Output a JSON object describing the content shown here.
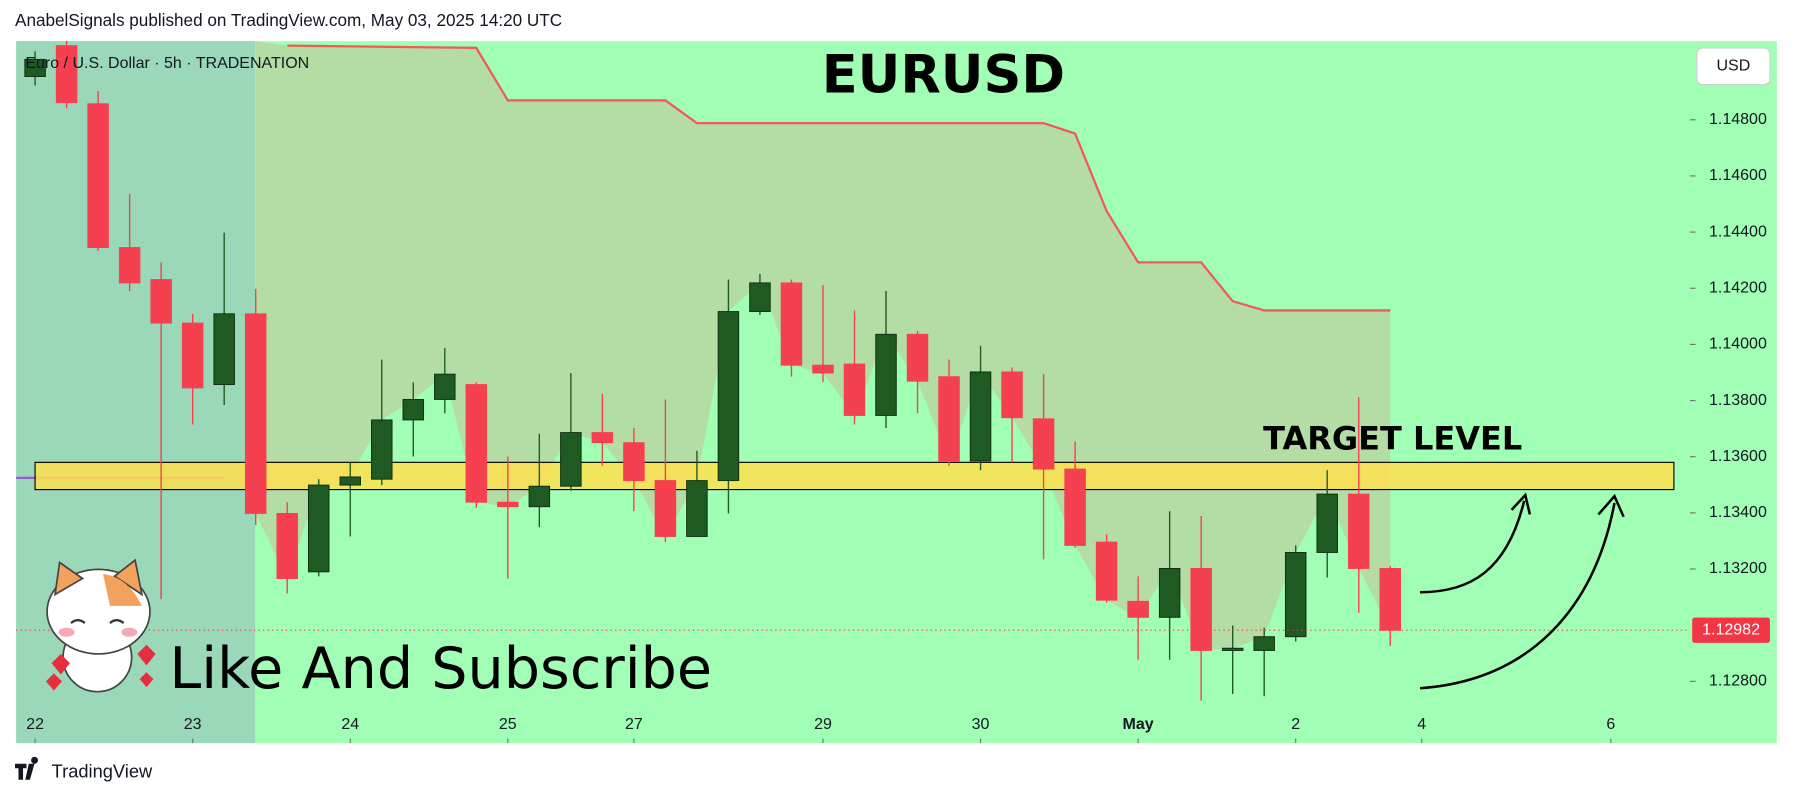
{
  "header": {
    "text": "AnabelSignals published on TradingView.com, May 03, 2025 14:20 UTC"
  },
  "footer": {
    "text": "TradingView"
  },
  "chart_data": {
    "type": "candlestick",
    "title": "EURUSD",
    "subtitle": "Euro / U.S. Dollar · 5h · TRADENATION",
    "currency": "USD",
    "up_color": "#1f5a22",
    "down_color": "#f5404f",
    "x": [
      0,
      1,
      2,
      3,
      4,
      5,
      6,
      7,
      8,
      9,
      10,
      11,
      12,
      13,
      14,
      15,
      16,
      17,
      18,
      19,
      20,
      21,
      22,
      23,
      24,
      25,
      26,
      27,
      28,
      29,
      30,
      31,
      32,
      33,
      34,
      35,
      36,
      37,
      38,
      39,
      40,
      41,
      42,
      43
    ],
    "open": [
      1.14954,
      1.15064,
      1.14857,
      1.14345,
      1.14231,
      1.14076,
      1.13857,
      1.14109,
      1.13398,
      1.1319,
      1.13499,
      1.1352,
      1.13731,
      1.13804,
      1.13857,
      1.13438,
      1.13422,
      1.13495,
      1.13686,
      1.1365,
      1.13515,
      1.13316,
      1.13515,
      1.14117,
      1.14219,
      1.13926,
      1.1393,
      1.13747,
      1.14036,
      1.13885,
      1.13585,
      1.13902,
      1.13735,
      1.13556,
      1.13296,
      1.13085,
      1.13028,
      1.13202,
      1.1291,
      1.1291,
      1.12959,
      1.13259,
      1.13467,
      1.13202
    ],
    "high": [
      1.15044,
      1.15081,
      1.14902,
      1.14536,
      1.14292,
      1.14109,
      1.14398,
      1.14198,
      1.13438,
      1.1352,
      1.1358,
      1.13946,
      1.13865,
      1.13987,
      1.13865,
      1.13601,
      1.13682,
      1.13898,
      1.13824,
      1.13702,
      1.13804,
      1.13621,
      1.14231,
      1.14251,
      1.14231,
      1.14211,
      1.14121,
      1.1419,
      1.14048,
      1.13946,
      1.13995,
      1.13918,
      1.13894,
      1.13654,
      1.13324,
      1.13174,
      1.13406,
      1.13389,
      1.12999,
      1.12991,
      1.13284,
      1.13552,
      1.13812,
      1.13211
    ],
    "low": [
      1.14922,
      1.14841,
      1.14333,
      1.1419,
      1.13093,
      1.13715,
      1.13784,
      1.13357,
      1.13113,
      1.13174,
      1.13316,
      1.13499,
      1.13601,
      1.13755,
      1.13418,
      1.13166,
      1.13349,
      1.13479,
      1.13568,
      1.13406,
      1.13296,
      1.13316,
      1.13398,
      1.14105,
      1.13885,
      1.13865,
      1.13715,
      1.13702,
      1.13755,
      1.13568,
      1.13552,
      1.1358,
      1.13235,
      1.13276,
      1.1308,
      1.12877,
      1.12877,
      1.12731,
      1.12755,
      1.12747,
      1.12942,
      1.1317,
      1.13044,
      1.12926
    ],
    "close": [
      1.15015,
      1.14861,
      1.14345,
      1.14219,
      1.14076,
      1.13845,
      1.14109,
      1.13398,
      1.13166,
      1.13499,
      1.13528,
      1.13731,
      1.13804,
      1.13894,
      1.13438,
      1.13422,
      1.13495,
      1.13686,
      1.1365,
      1.13515,
      1.13316,
      1.13515,
      1.14117,
      1.14219,
      1.13926,
      1.13898,
      1.13747,
      1.14036,
      1.13869,
      1.13585,
      1.13902,
      1.13739,
      1.13556,
      1.13284,
      1.13089,
      1.13028,
      1.13202,
      1.1291,
      1.12918,
      1.12959,
      1.13259,
      1.13467,
      1.13202,
      1.12982
    ],
    "xlim": [
      -0.6,
      52.4
    ],
    "xticks": [
      {
        "value": 0,
        "label": "22"
      },
      {
        "value": 5,
        "label": "23"
      },
      {
        "value": 10,
        "label": "24"
      },
      {
        "value": 15,
        "label": "25"
      },
      {
        "value": 19,
        "label": "27"
      },
      {
        "value": 25,
        "label": "29"
      },
      {
        "value": 30,
        "label": "30"
      },
      {
        "value": 35,
        "label": "May"
      },
      {
        "value": 40,
        "label": "2"
      },
      {
        "value": 44,
        "label": "4"
      },
      {
        "value": 50,
        "label": "6"
      }
    ],
    "ylim": [
      1.1258,
      1.1508
    ],
    "yticks": [
      {
        "value": 1.128,
        "label": "1.12800"
      },
      {
        "value": 1.132,
        "label": "1.13200"
      },
      {
        "value": 1.134,
        "label": "1.13400"
      },
      {
        "value": 1.136,
        "label": "1.13600"
      },
      {
        "value": 1.138,
        "label": "1.13800"
      },
      {
        "value": 1.14,
        "label": "1.14000"
      },
      {
        "value": 1.142,
        "label": "1.14200"
      },
      {
        "value": 1.144,
        "label": "1.14400"
      },
      {
        "value": 1.146,
        "label": "1.14600"
      },
      {
        "value": 1.148,
        "label": "1.14800"
      }
    ],
    "indicator": {
      "color": "#f25a5a",
      "x": [
        8,
        14,
        15,
        20,
        21,
        32,
        33,
        34,
        35,
        37,
        38,
        39,
        43
      ],
      "y": [
        1.15064,
        1.15056,
        1.14869,
        1.14869,
        1.14788,
        1.14788,
        1.14751,
        1.14475,
        1.14292,
        1.14292,
        1.14154,
        1.14121,
        1.14121
      ]
    },
    "zone": {
      "label": "TARGET LEVEL",
      "color": "#ffe14d",
      "x": [
        0,
        52
      ],
      "y": [
        1.13483,
        1.1358
      ]
    },
    "last_price": 1.12982,
    "last_price_color": "#f23645",
    "annotation": "Like And Subscribe"
  }
}
